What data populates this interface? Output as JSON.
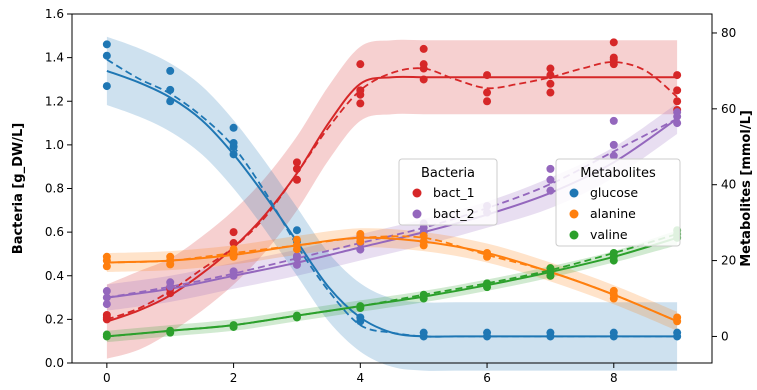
{
  "chart_data": {
    "type": "line",
    "x_ticks": [
      0,
      2,
      4,
      6,
      8
    ],
    "xlim": [
      -0.55,
      9.55
    ],
    "left_axis": {
      "label": "Bacteria [g_DW/L]",
      "ylim": [
        0.0,
        1.6
      ],
      "ticks": [
        "0.0",
        "0.2",
        "0.4",
        "0.6",
        "0.8",
        "1.0",
        "1.2",
        "1.4",
        "1.6"
      ]
    },
    "right_axis": {
      "label": "Metabolites [mmol/L]",
      "ylim": [
        -7,
        85
      ],
      "ticks": [
        "0",
        "20",
        "40",
        "60",
        "80"
      ]
    },
    "grid": false,
    "legends": [
      {
        "title": "Bacteria",
        "placement": "center",
        "entries": [
          "bact_1",
          "bact_2"
        ]
      },
      {
        "title": "Metabolites",
        "placement": "center-right",
        "entries": [
          "glucose",
          "alanine",
          "valine"
        ]
      }
    ],
    "series": [
      {
        "name": "bact_1",
        "axis": "left",
        "color": "#d62728",
        "x": [
          0,
          0.5,
          1,
          1.5,
          2,
          2.5,
          3,
          3.5,
          4,
          4.5,
          5,
          5.5,
          6,
          6.5,
          7,
          7.5,
          8,
          8.5,
          9
        ],
        "fit": [
          0.19,
          0.24,
          0.31,
          0.41,
          0.53,
          0.68,
          0.87,
          1.1,
          1.28,
          1.31,
          1.31,
          1.31,
          1.31,
          1.31,
          1.31,
          1.31,
          1.31,
          1.31,
          1.31
        ],
        "band": [
          0.17,
          0.18,
          0.17,
          0.17,
          0.17,
          0.17,
          0.17,
          0.17,
          0.17,
          0.17,
          0.17,
          0.17,
          0.17,
          0.17,
          0.17,
          0.17,
          0.17,
          0.17,
          0.17
        ],
        "mean": [
          0.2,
          0.25,
          0.33,
          0.43,
          0.53,
          0.67,
          0.87,
          1.08,
          1.25,
          1.33,
          1.35,
          1.3,
          1.26,
          1.28,
          1.31,
          1.35,
          1.38,
          1.34,
          1.22
        ],
        "points": [
          [
            0,
            0.2
          ],
          [
            0,
            0.21
          ],
          [
            0,
            0.22
          ],
          [
            1,
            0.32
          ],
          [
            1,
            0.34
          ],
          [
            1,
            0.35
          ],
          [
            2,
            0.5
          ],
          [
            2,
            0.55
          ],
          [
            2,
            0.6
          ],
          [
            3,
            0.84
          ],
          [
            3,
            0.89
          ],
          [
            3,
            0.92
          ],
          [
            4,
            1.19
          ],
          [
            4,
            1.23
          ],
          [
            4,
            1.25
          ],
          [
            4,
            1.37
          ],
          [
            5,
            1.3
          ],
          [
            5,
            1.35
          ],
          [
            5,
            1.37
          ],
          [
            5,
            1.44
          ],
          [
            6,
            1.2
          ],
          [
            6,
            1.24
          ],
          [
            6,
            1.32
          ],
          [
            7,
            1.24
          ],
          [
            7,
            1.28
          ],
          [
            7,
            1.32
          ],
          [
            7,
            1.35
          ],
          [
            8,
            1.37
          ],
          [
            8,
            1.39
          ],
          [
            8,
            1.4
          ],
          [
            8,
            1.47
          ],
          [
            9,
            1.16
          ],
          [
            9,
            1.2
          ],
          [
            9,
            1.25
          ],
          [
            9,
            1.32
          ]
        ]
      },
      {
        "name": "bact_2",
        "axis": "left",
        "color": "#9467bd",
        "x": [
          0,
          1,
          2,
          3,
          4,
          5,
          6,
          7,
          8,
          9
        ],
        "fit": [
          0.3,
          0.34,
          0.4,
          0.46,
          0.53,
          0.6,
          0.68,
          0.78,
          0.92,
          1.12
        ],
        "band": [
          0.06,
          0.06,
          0.06,
          0.06,
          0.06,
          0.06,
          0.06,
          0.07,
          0.07,
          0.07
        ],
        "mean": [
          0.3,
          0.35,
          0.41,
          0.48,
          0.55,
          0.62,
          0.71,
          0.82,
          0.97,
          1.12
        ],
        "points": [
          [
            0,
            0.27
          ],
          [
            0,
            0.3
          ],
          [
            0,
            0.33
          ],
          [
            1,
            0.35
          ],
          [
            1,
            0.37
          ],
          [
            2,
            0.4
          ],
          [
            2,
            0.42
          ],
          [
            3,
            0.45
          ],
          [
            3,
            0.48
          ],
          [
            3,
            0.49
          ],
          [
            4,
            0.52
          ],
          [
            4,
            0.55
          ],
          [
            4,
            0.58
          ],
          [
            5,
            0.6
          ],
          [
            5,
            0.62
          ],
          [
            5,
            0.64
          ],
          [
            6,
            0.69
          ],
          [
            6,
            0.72
          ],
          [
            7,
            0.79
          ],
          [
            7,
            0.84
          ],
          [
            7,
            0.89
          ],
          [
            8,
            0.95
          ],
          [
            8,
            1.0
          ],
          [
            8,
            1.11
          ],
          [
            9,
            1.1
          ],
          [
            9,
            1.13
          ],
          [
            9,
            1.15
          ]
        ]
      },
      {
        "name": "glucose",
        "axis": "right",
        "color": "#1f77b4",
        "x": [
          0,
          0.5,
          1,
          1.5,
          2,
          2.5,
          3,
          3.5,
          4,
          4.5,
          5,
          5.5,
          6,
          6.5,
          7,
          7.5,
          8,
          8.5,
          9
        ],
        "fit": [
          70,
          67,
          63,
          57,
          48,
          37,
          25,
          13,
          5,
          1,
          0,
          0,
          0,
          0,
          0,
          0,
          0,
          0,
          0
        ],
        "band": [
          9,
          9,
          9,
          9,
          9,
          9,
          9,
          9,
          9,
          9,
          9,
          9,
          9,
          9,
          9,
          9,
          9,
          9,
          9
        ],
        "mean": [
          73,
          68,
          64,
          58,
          50,
          38,
          24,
          12,
          3,
          1,
          0,
          0,
          0,
          0,
          0,
          0,
          0,
          0,
          0
        ],
        "points": [
          [
            0,
            66
          ],
          [
            0,
            74
          ],
          [
            0,
            77
          ],
          [
            1,
            62
          ],
          [
            1,
            65
          ],
          [
            1,
            70
          ],
          [
            2,
            48
          ],
          [
            2,
            50
          ],
          [
            2,
            51
          ],
          [
            2,
            55
          ],
          [
            3,
            25
          ],
          [
            3,
            28
          ],
          [
            4,
            4
          ],
          [
            4,
            5
          ],
          [
            5,
            0
          ],
          [
            5,
            1
          ],
          [
            6,
            0
          ],
          [
            6,
            1
          ],
          [
            7,
            0
          ],
          [
            7,
            1
          ],
          [
            8,
            0
          ],
          [
            8,
            1
          ],
          [
            9,
            0
          ],
          [
            9,
            1
          ]
        ]
      },
      {
        "name": "alanine",
        "axis": "right",
        "color": "#ff7f0e",
        "x": [
          0,
          1,
          2,
          3,
          4,
          5,
          6,
          7,
          8,
          9
        ],
        "fit": [
          19.5,
          20,
          21.5,
          24,
          26,
          25,
          22,
          17,
          11,
          4
        ],
        "band": [
          2.5,
          2.5,
          2.5,
          2.5,
          2.5,
          2.5,
          2.5,
          2.5,
          2.5,
          2.5
        ],
        "mean": [
          19.5,
          20,
          22,
          24,
          26,
          26,
          21.5,
          17,
          11,
          4
        ],
        "points": [
          [
            0,
            18.5
          ],
          [
            0,
            20
          ],
          [
            0,
            21
          ],
          [
            1,
            19
          ],
          [
            1,
            20
          ],
          [
            1,
            21
          ],
          [
            2,
            21
          ],
          [
            2,
            22
          ],
          [
            2,
            23
          ],
          [
            3,
            23
          ],
          [
            3,
            24
          ],
          [
            3,
            25.5
          ],
          [
            4,
            25
          ],
          [
            4,
            26
          ],
          [
            4,
            27
          ],
          [
            5,
            24
          ],
          [
            5,
            25
          ],
          [
            5,
            26.5
          ],
          [
            6,
            21
          ],
          [
            6,
            22
          ],
          [
            7,
            16
          ],
          [
            7,
            17
          ],
          [
            7,
            18
          ],
          [
            8,
            10
          ],
          [
            8,
            11
          ],
          [
            8,
            12
          ],
          [
            9,
            4
          ],
          [
            9,
            5
          ]
        ]
      },
      {
        "name": "valine",
        "axis": "right",
        "color": "#2ca02c",
        "x": [
          0,
          1,
          2,
          3,
          4,
          5,
          6,
          7,
          8,
          9
        ],
        "fit": [
          0,
          1.5,
          3,
          5.5,
          8,
          10.5,
          13.5,
          17,
          21,
          26
        ],
        "band": [
          1.5,
          1.5,
          1.5,
          1.5,
          1.5,
          1.5,
          1.5,
          1.5,
          1.5,
          2
        ],
        "mean": [
          0,
          1.5,
          3,
          5.5,
          8,
          11,
          14,
          17.5,
          22,
          27
        ],
        "points": [
          [
            0,
            0
          ],
          [
            0,
            0.5
          ],
          [
            1,
            1
          ],
          [
            1,
            1.5
          ],
          [
            2,
            2.5
          ],
          [
            2,
            3
          ],
          [
            3,
            5
          ],
          [
            3,
            5.5
          ],
          [
            4,
            7.5
          ],
          [
            4,
            8
          ],
          [
            5,
            10
          ],
          [
            5,
            11
          ],
          [
            6,
            13
          ],
          [
            6,
            14
          ],
          [
            7,
            16
          ],
          [
            7,
            17
          ],
          [
            7,
            18
          ],
          [
            8,
            20
          ],
          [
            8,
            21
          ],
          [
            8,
            22
          ],
          [
            9,
            26
          ],
          [
            9,
            27
          ],
          [
            9,
            28
          ]
        ]
      }
    ]
  }
}
